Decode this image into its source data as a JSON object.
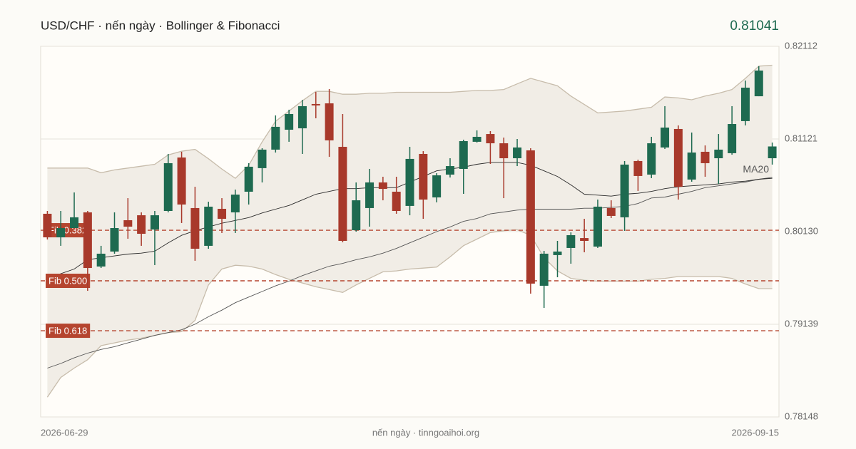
{
  "chart_data": {
    "type": "candlestick",
    "title": "USD/CHF · nến ngày · Bollinger & Fibonacci",
    "last_price": 0.81041,
    "x_start_label": "2026-06-29",
    "x_end_label": "2026-09-15",
    "footer": "nến ngày · tinngoaihoi.org",
    "ylim": [
      0.78148,
      0.82112
    ],
    "yticks": [
      0.78148,
      0.79139,
      {
        "value": 0.8013,
        "label": "0.80130"
      },
      0.81121,
      0.82112
    ],
    "grid": true,
    "up_color": "#1e6a50",
    "down_color": "#a8392b",
    "candles": {
      "open": [
        0.80321,
        0.80069,
        0.80168,
        0.80336,
        0.79757,
        0.79917,
        0.80252,
        0.80305,
        0.80153,
        0.80351,
        0.80923,
        0.80382,
        0.79978,
        0.80374,
        0.80336,
        0.80557,
        0.80809,
        0.81007,
        0.8122,
        0.81235,
        0.81495,
        0.81502,
        0.81037,
        0.80145,
        0.80382,
        0.80656,
        0.80557,
        0.80405,
        0.80961,
        0.80496,
        0.8074,
        0.80801,
        0.81091,
        0.81174,
        0.81075,
        0.80915,
        0.80999,
        0.79551,
        0.79879,
        0.79955,
        0.80061,
        0.7997,
        0.80382,
        0.80283,
        0.80885,
        0.8074,
        0.8103,
        0.81228,
        0.80687,
        0.80984,
        0.80915,
        0.80969,
        0.81312,
        0.81578,
        0.80915
      ],
      "high": [
        0.80351,
        0.80351,
        0.80549,
        0.80351,
        0.79978,
        0.80336,
        0.80488,
        0.80336,
        0.80351,
        0.80961,
        0.80984,
        0.8061,
        0.8045,
        0.80488,
        0.8058,
        0.80862,
        0.81022,
        0.81373,
        0.81434,
        0.8154,
        0.81624,
        0.81655,
        0.81388,
        0.80656,
        0.80801,
        0.80717,
        0.80717,
        0.81037,
        0.80991,
        0.80755,
        0.80915,
        0.81113,
        0.81213,
        0.81205,
        0.81136,
        0.81121,
        0.81022,
        0.79924,
        0.80031,
        0.80122,
        0.80267,
        0.80473,
        0.80465,
        0.80885,
        0.809,
        0.81144,
        0.81472,
        0.81266,
        0.8119,
        0.81052,
        0.81174,
        0.81472,
        0.81746,
        0.81899,
        0.81083
      ],
      "low": [
        0.80046,
        0.79978,
        0.80168,
        0.79497,
        0.79741,
        0.79894,
        0.80054,
        0.79978,
        0.79772,
        0.80336,
        0.80222,
        0.79818,
        0.79947,
        0.80115,
        0.80115,
        0.8042,
        0.80656,
        0.80976,
        0.81091,
        0.80961,
        0.81342,
        0.8093,
        0.80016,
        0.8013,
        0.80183,
        0.80465,
        0.80321,
        0.80305,
        0.80267,
        0.80443,
        0.80709,
        0.80534,
        0.81083,
        0.80854,
        0.80488,
        0.80831,
        0.79467,
        0.79314,
        0.79642,
        0.79787,
        0.79909,
        0.79955,
        0.80275,
        0.80138,
        0.80565,
        0.80702,
        0.81014,
        0.80473,
        0.80664,
        0.80717,
        0.80641,
        0.80953,
        0.81266,
        0.81578,
        0.80847
      ],
      "close": [
        0.80069,
        0.80168,
        0.80283,
        0.79741,
        0.79894,
        0.80168,
        0.80183,
        0.80107,
        0.80305,
        0.80862,
        0.8042,
        0.79947,
        0.80397,
        0.80267,
        0.80526,
        0.80824,
        0.81007,
        0.81251,
        0.81388,
        0.81472,
        0.81487,
        0.81106,
        0.80031,
        0.80465,
        0.80656,
        0.80587,
        0.80351,
        0.80908,
        0.80473,
        0.80732,
        0.80831,
        0.81098,
        0.81144,
        0.81075,
        0.80915,
        0.8103,
        0.79574,
        0.79894,
        0.79917,
        0.80092,
        0.80031,
        0.80397,
        0.80298,
        0.80847,
        0.80725,
        0.81075,
        0.81243,
        0.8061,
        0.80976,
        0.80862,
        0.81007,
        0.81281,
        0.8167,
        0.81853,
        0.81041
      ]
    },
    "bollinger": {
      "upper": [
        0.8081,
        0.8081,
        0.8081,
        0.8081,
        0.8076,
        0.8079,
        0.8081,
        0.8083,
        0.8085,
        0.8095,
        0.8099,
        0.8101,
        0.8091,
        0.808,
        0.807,
        0.8084,
        0.8109,
        0.8131,
        0.8142,
        0.8153,
        0.8163,
        0.8163,
        0.816,
        0.816,
        0.8161,
        0.8161,
        0.8162,
        0.8162,
        0.8162,
        0.8162,
        0.8162,
        0.8163,
        0.8164,
        0.8164,
        0.8165,
        0.8171,
        0.8177,
        0.8173,
        0.8169,
        0.8158,
        0.8149,
        0.814,
        0.8141,
        0.8142,
        0.8144,
        0.8146,
        0.8157,
        0.8156,
        0.8154,
        0.8158,
        0.8161,
        0.8165,
        0.8177,
        0.819,
        0.8191
      ],
      "lower": [
        0.7836,
        0.7857,
        0.7867,
        0.7876,
        0.7891,
        0.7894,
        0.7897,
        0.7899,
        0.7902,
        0.7905,
        0.7906,
        0.7918,
        0.7956,
        0.7973,
        0.7977,
        0.7976,
        0.7973,
        0.7967,
        0.7962,
        0.7958,
        0.7954,
        0.7951,
        0.7948,
        0.7956,
        0.7963,
        0.797,
        0.7971,
        0.7973,
        0.7974,
        0.7975,
        0.7986,
        0.7998,
        0.8005,
        0.8012,
        0.8014,
        0.8015,
        0.8009,
        0.7985,
        0.7971,
        0.7963,
        0.7961,
        0.796,
        0.796,
        0.796,
        0.796,
        0.7962,
        0.7963,
        0.7965,
        0.7965,
        0.7965,
        0.7965,
        0.7963,
        0.7957,
        0.7952,
        0.7952
      ],
      "color": "#c7bcab",
      "fill": "#f1ede6"
    },
    "ma": {
      "name": "MA20",
      "color": "#2a2a2a",
      "values": [
        0.7963,
        0.7968,
        0.7973,
        0.7983,
        0.7985,
        0.7987,
        0.7989,
        0.799,
        0.7992,
        0.8001,
        0.8009,
        0.8014,
        0.8018,
        0.8022,
        0.8025,
        0.8028,
        0.8033,
        0.8037,
        0.8041,
        0.8047,
        0.8053,
        0.8056,
        0.8059,
        0.8059,
        0.806,
        0.806,
        0.806,
        0.8066,
        0.8072,
        0.8078,
        0.808,
        0.8082,
        0.8085,
        0.8087,
        0.8087,
        0.8087,
        0.8084,
        0.8078,
        0.8072,
        0.8063,
        0.8053,
        0.8052,
        0.8051,
        0.8053,
        0.8054,
        0.8056,
        0.8059,
        0.8061,
        0.8062,
        0.8063,
        0.8064,
        0.8066,
        0.8067,
        0.8069,
        0.807
      ]
    },
    "ma_long": {
      "color": "#555555",
      "values": [
        0.7867,
        0.7872,
        0.7878,
        0.7883,
        0.7887,
        0.789,
        0.7894,
        0.7898,
        0.7902,
        0.7905,
        0.7908,
        0.7914,
        0.7922,
        0.7929,
        0.7937,
        0.7943,
        0.7949,
        0.7955,
        0.796,
        0.7966,
        0.7971,
        0.7976,
        0.7979,
        0.7983,
        0.7986,
        0.799,
        0.7995,
        0.8001,
        0.8007,
        0.8013,
        0.8018,
        0.8024,
        0.8027,
        0.8032,
        0.8034,
        0.8036,
        0.8037,
        0.8037,
        0.8037,
        0.8037,
        0.8038,
        0.8038,
        0.8039,
        0.804,
        0.8043,
        0.8049,
        0.805,
        0.8053,
        0.8056,
        0.806,
        0.8062,
        0.8064,
        0.8066,
        0.8069,
        0.8071
      ]
    },
    "fib_levels": [
      {
        "label": "Fib 0.382",
        "value": 0.80145
      },
      {
        "label": "Fib 0.500",
        "value": 0.79604
      },
      {
        "label": "Fib 0.618",
        "value": 0.7907
      }
    ],
    "fib_color": "#b5452f"
  }
}
